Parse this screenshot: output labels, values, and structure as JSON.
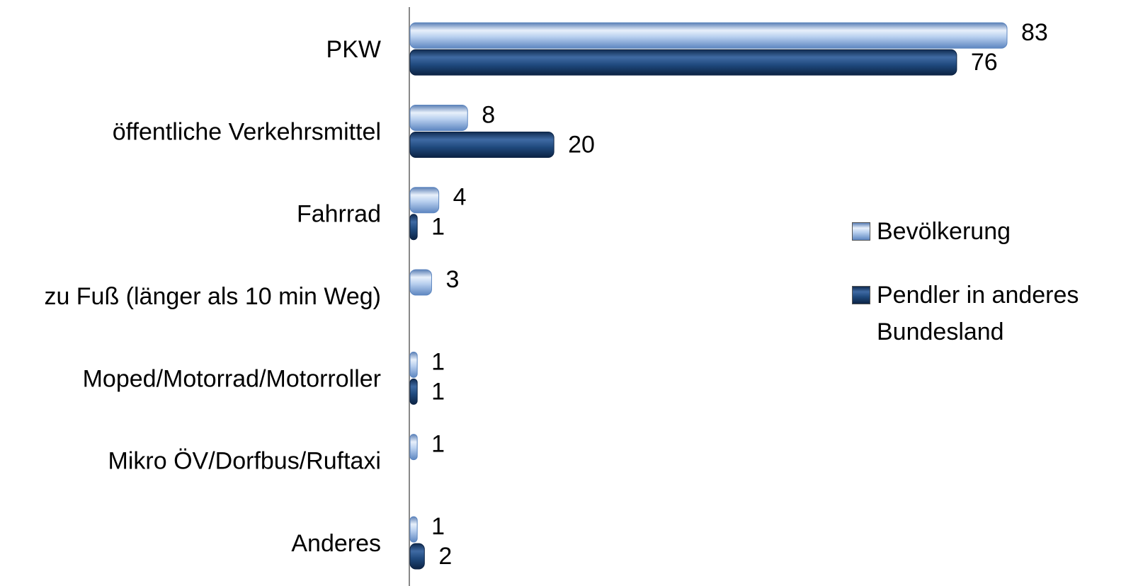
{
  "chart_data": {
    "type": "bar",
    "orientation": "horizontal",
    "categories": [
      "PKW",
      "öffentliche Verkehrsmittel",
      "Fahrrad",
      "zu Fuß (länger als 10 min Weg)",
      "Moped/Motorrad/Motorroller",
      "Mikro ÖV/Dorfbus/Ruftaxi",
      "Anderes"
    ],
    "series": [
      {
        "name": "Bevölkerung",
        "color": "#8fb4e3",
        "values": [
          83,
          8,
          4,
          3,
          1,
          1,
          1
        ]
      },
      {
        "name": "Pendler in anderes Bundesland",
        "color": "#1f497d",
        "values": [
          76,
          20,
          1,
          null,
          1,
          null,
          2
        ]
      }
    ],
    "legend": "right"
  }
}
